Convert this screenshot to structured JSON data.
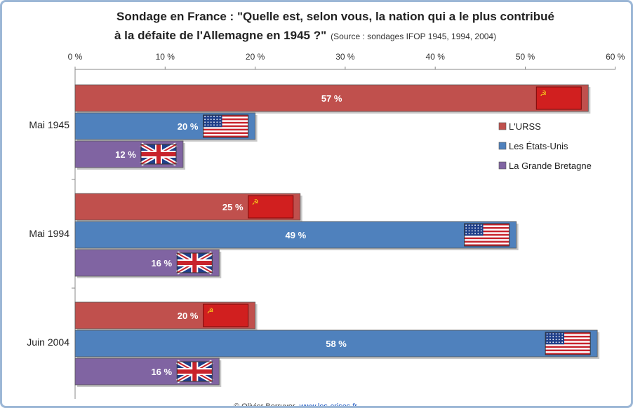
{
  "chart_data": {
    "type": "bar",
    "orientation": "horizontal",
    "title_line1": "Sondage en France : \"Quelle est, selon vous, la nation qui a le plus contribué",
    "title_line2": "à la défaite de l'Allemagne en 1945 ?\"",
    "subtitle": "(Source : sondages IFOP 1945, 1994, 2004)",
    "categories": [
      "Mai 1945",
      "Mai 1994",
      "Juin 2004"
    ],
    "series": [
      {
        "name": "L'URSS",
        "values": [
          57,
          25,
          20
        ],
        "labels": [
          "57 %",
          "25 %",
          "20 %"
        ],
        "color": "#c0504d",
        "flag": "ussr-flag-icon"
      },
      {
        "name": "Les États-Unis",
        "values": [
          20,
          49,
          58
        ],
        "labels": [
          "20 %",
          "49 %",
          "58 %"
        ],
        "color": "#4f81bd",
        "flag": "usa-flag-icon"
      },
      {
        "name": "La Grande Bretagne",
        "values": [
          12,
          16,
          16
        ],
        "labels": [
          "12 %",
          "16 %",
          "16 %"
        ],
        "color": "#8064a2",
        "flag": "uk-flag-icon"
      }
    ],
    "xlim": [
      0,
      60
    ],
    "x_ticks": [
      0,
      10,
      20,
      30,
      40,
      50,
      60
    ],
    "x_tick_labels": [
      "0 %",
      "10 %",
      "20 %",
      "30 %",
      "40 %",
      "50 %",
      "60 %"
    ],
    "axis_position": "top",
    "legend_position": "right",
    "grid": false
  },
  "footer": {
    "author": "© Olivier Berruyer",
    "site": "www.les-crises.fr"
  }
}
